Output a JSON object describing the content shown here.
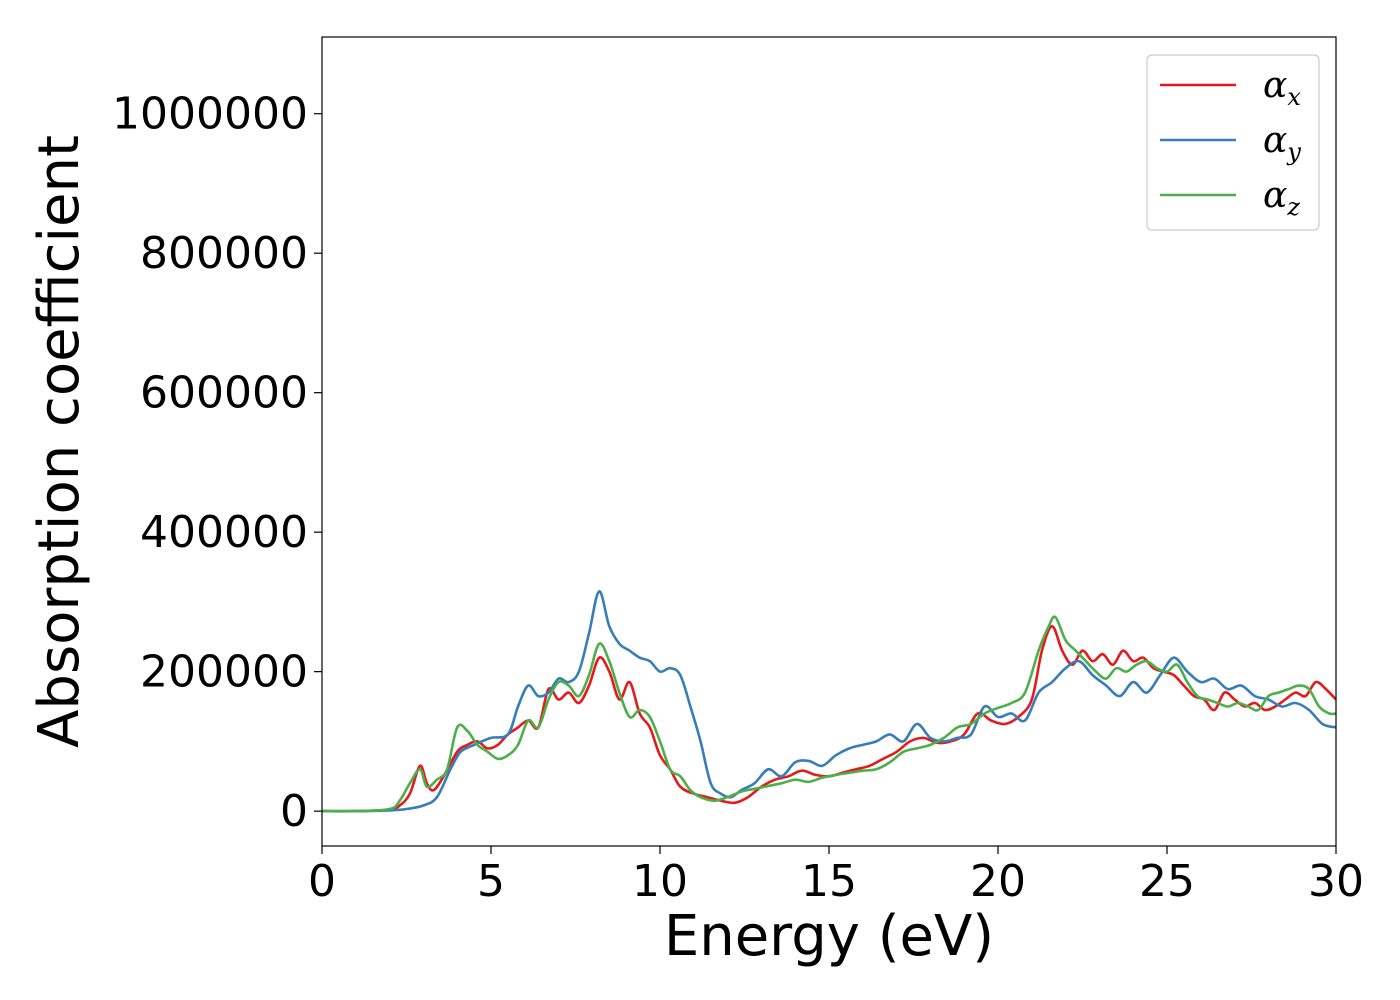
{
  "chart_data": {
    "type": "line",
    "xlabel": "Energy (eV)",
    "ylabel": "Absorption coefficient",
    "xlim": [
      0,
      30
    ],
    "ylim": [
      -50000,
      1110000
    ],
    "xticks": [
      0,
      5,
      10,
      15,
      20,
      25,
      30
    ],
    "yticks": [
      0,
      200000,
      400000,
      600000,
      800000,
      1000000
    ],
    "xtick_labels": [
      "0",
      "5",
      "10",
      "15",
      "20",
      "25",
      "30"
    ],
    "ytick_labels": [
      "0",
      "200000",
      "400000",
      "600000",
      "800000",
      "1000000"
    ],
    "grid": false,
    "legend_position": "top-right",
    "series": [
      {
        "name": "αx",
        "name_base": "α",
        "name_sub": "x",
        "color": "#e41a1c",
        "x": [
          0,
          1,
          2,
          2.3,
          2.6,
          2.9,
          3.1,
          3.3,
          3.6,
          4.0,
          4.3,
          4.6,
          4.9,
          5.2,
          5.5,
          5.8,
          6.1,
          6.4,
          6.7,
          7.0,
          7.3,
          7.6,
          7.9,
          8.2,
          8.5,
          8.8,
          9.1,
          9.4,
          9.7,
          10.0,
          10.3,
          10.6,
          11.0,
          11.4,
          11.8,
          12.2,
          12.6,
          13.0,
          13.4,
          13.8,
          14.2,
          14.6,
          15.0,
          15.4,
          15.8,
          16.2,
          16.6,
          17.0,
          17.4,
          17.8,
          18.2,
          18.6,
          19.0,
          19.4,
          19.8,
          20.2,
          20.6,
          21.0,
          21.3,
          21.6,
          21.9,
          22.2,
          22.5,
          22.8,
          23.1,
          23.4,
          23.7,
          24.0,
          24.3,
          24.6,
          24.9,
          25.2,
          25.5,
          25.8,
          26.1,
          26.4,
          26.7,
          27.0,
          27.3,
          27.6,
          27.9,
          28.2,
          28.5,
          28.8,
          29.1,
          29.4,
          29.7,
          30.0
        ],
        "y": [
          0,
          0,
          2000,
          8000,
          25000,
          65000,
          40000,
          30000,
          50000,
          85000,
          95000,
          100000,
          90000,
          95000,
          110000,
          120000,
          130000,
          120000,
          175000,
          160000,
          170000,
          155000,
          180000,
          220000,
          200000,
          160000,
          185000,
          140000,
          120000,
          80000,
          60000,
          35000,
          25000,
          20000,
          15000,
          12000,
          20000,
          35000,
          45000,
          50000,
          58000,
          52000,
          50000,
          55000,
          60000,
          65000,
          75000,
          85000,
          100000,
          105000,
          98000,
          100000,
          110000,
          140000,
          130000,
          125000,
          135000,
          160000,
          230000,
          265000,
          230000,
          210000,
          230000,
          215000,
          225000,
          210000,
          230000,
          215000,
          220000,
          205000,
          200000,
          195000,
          180000,
          165000,
          160000,
          145000,
          170000,
          160000,
          150000,
          155000,
          145000,
          150000,
          160000,
          170000,
          165000,
          185000,
          175000,
          160000
        ]
      },
      {
        "name": "αy",
        "name_base": "α",
        "name_sub": "y",
        "color": "#377eb8",
        "x": [
          0,
          1,
          2,
          2.5,
          3.0,
          3.4,
          3.8,
          4.1,
          4.5,
          5.0,
          5.5,
          5.8,
          6.1,
          6.4,
          6.7,
          7.0,
          7.3,
          7.6,
          7.9,
          8.2,
          8.5,
          8.8,
          9.1,
          9.4,
          9.7,
          10.0,
          10.3,
          10.6,
          10.9,
          11.2,
          11.5,
          11.8,
          12.1,
          12.4,
          12.8,
          13.2,
          13.6,
          14.0,
          14.4,
          14.8,
          15.2,
          15.6,
          16.0,
          16.4,
          16.8,
          17.2,
          17.6,
          18.0,
          18.4,
          18.8,
          19.2,
          19.6,
          20.0,
          20.4,
          20.8,
          21.2,
          21.6,
          22.0,
          22.4,
          22.8,
          23.2,
          23.6,
          24.0,
          24.4,
          24.8,
          25.2,
          25.6,
          26.0,
          26.4,
          26.8,
          27.2,
          27.6,
          28.0,
          28.4,
          28.8,
          29.2,
          29.6,
          30.0
        ],
        "y": [
          0,
          0,
          1000,
          3000,
          8000,
          20000,
          60000,
          85000,
          95000,
          105000,
          110000,
          150000,
          180000,
          165000,
          170000,
          190000,
          185000,
          200000,
          255000,
          315000,
          265000,
          240000,
          230000,
          220000,
          215000,
          200000,
          205000,
          195000,
          150000,
          100000,
          40000,
          25000,
          20000,
          30000,
          40000,
          60000,
          50000,
          70000,
          72000,
          65000,
          80000,
          90000,
          95000,
          100000,
          110000,
          100000,
          125000,
          105000,
          100000,
          105000,
          110000,
          150000,
          135000,
          140000,
          130000,
          170000,
          185000,
          205000,
          215000,
          195000,
          180000,
          165000,
          185000,
          170000,
          195000,
          220000,
          200000,
          185000,
          190000,
          175000,
          180000,
          165000,
          160000,
          150000,
          155000,
          145000,
          125000,
          120000
        ]
      },
      {
        "name": "αz",
        "name_base": "α",
        "name_sub": "z",
        "color": "#4daf4a",
        "x": [
          0,
          1,
          2,
          2.3,
          2.6,
          2.9,
          3.1,
          3.4,
          3.7,
          4.0,
          4.3,
          4.6,
          4.9,
          5.2,
          5.5,
          5.8,
          6.1,
          6.4,
          6.7,
          7.0,
          7.3,
          7.6,
          7.9,
          8.2,
          8.5,
          8.8,
          9.1,
          9.4,
          9.7,
          10.0,
          10.3,
          10.6,
          10.9,
          11.2,
          11.6,
          12.0,
          12.4,
          12.8,
          13.2,
          13.6,
          14.0,
          14.4,
          14.8,
          15.2,
          15.6,
          16.0,
          16.4,
          16.8,
          17.2,
          17.6,
          18.0,
          18.4,
          18.8,
          19.2,
          19.6,
          20.0,
          20.4,
          20.8,
          21.2,
          21.5,
          21.7,
          22.0,
          22.3,
          22.6,
          22.9,
          23.2,
          23.5,
          23.8,
          24.1,
          24.4,
          24.7,
          25.0,
          25.3,
          25.6,
          25.9,
          26.2,
          26.5,
          26.8,
          27.1,
          27.4,
          27.7,
          28.0,
          28.3,
          28.6,
          28.9,
          29.2,
          29.5,
          29.8,
          30.0
        ],
        "y": [
          0,
          0,
          3000,
          15000,
          40000,
          60000,
          35000,
          45000,
          60000,
          120000,
          115000,
          95000,
          85000,
          75000,
          80000,
          95000,
          130000,
          120000,
          160000,
          185000,
          180000,
          165000,
          195000,
          240000,
          215000,
          170000,
          135000,
          145000,
          135000,
          100000,
          60000,
          50000,
          30000,
          20000,
          15000,
          20000,
          28000,
          32000,
          36000,
          40000,
          45000,
          42000,
          48000,
          52000,
          55000,
          58000,
          60000,
          70000,
          85000,
          90000,
          95000,
          105000,
          120000,
          125000,
          140000,
          148000,
          155000,
          170000,
          230000,
          265000,
          278000,
          245000,
          230000,
          215000,
          200000,
          190000,
          205000,
          200000,
          210000,
          215000,
          205000,
          200000,
          210000,
          185000,
          165000,
          160000,
          155000,
          150000,
          155000,
          150000,
          145000,
          165000,
          170000,
          175000,
          180000,
          175000,
          150000,
          140000,
          140000
        ]
      }
    ]
  }
}
